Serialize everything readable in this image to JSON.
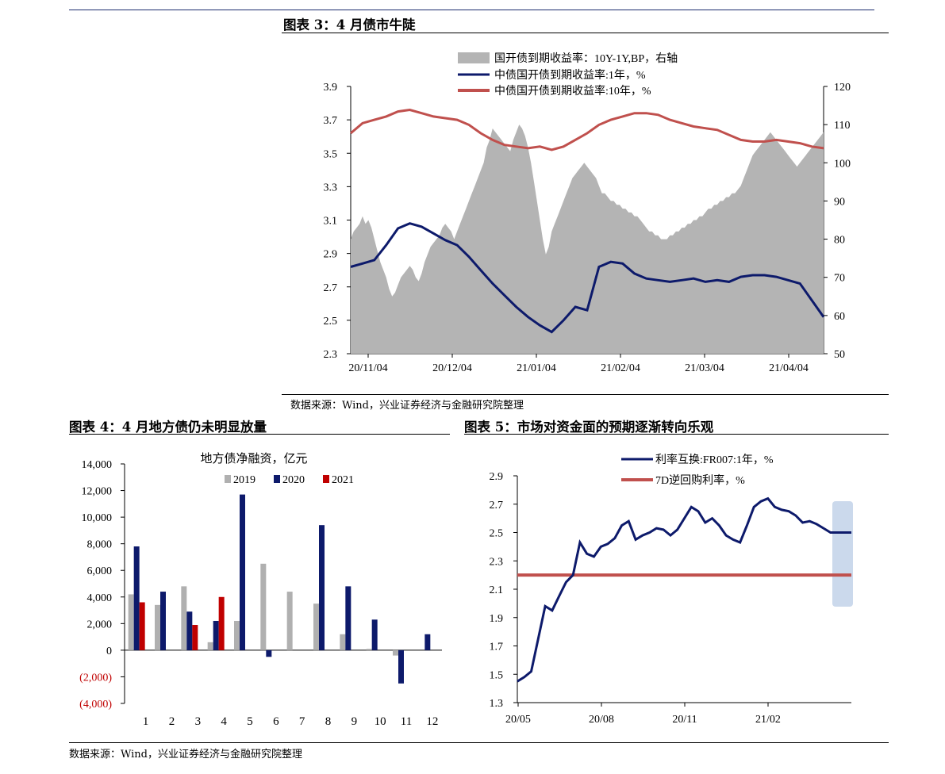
{
  "page": {
    "title_c3": "图表 3：4 月债市牛陡",
    "title_c4": "图表 4：4 月地方债仍未明显放量",
    "title_c5": "图表 5：市场对资金面的预期逐渐转向乐观",
    "source_top": "数据来源：Wind，兴业证券经济与金融研究院整理",
    "source_bottom": "数据来源：Wind，兴业证券经济与金融研究院整理"
  },
  "colors": {
    "navy": "#0d1a6b",
    "red": "#c0504d",
    "gray_area": "#b4b4b4",
    "gray_bar": "#b0b0b0",
    "dark_red": "#c00000",
    "highlight": "#c5d5ea"
  },
  "chart_data": [
    {
      "id": "chart3",
      "type": "line",
      "title": "",
      "x_ticks": [
        "20/11/04",
        "20/12/04",
        "21/01/04",
        "21/02/04",
        "21/03/04",
        "21/04/04"
      ],
      "y_left": {
        "ticks": [
          "2.3",
          "2.5",
          "2.7",
          "2.9",
          "3.1",
          "3.3",
          "3.5",
          "3.7",
          "3.9"
        ],
        "range": [
          2.3,
          3.9
        ]
      },
      "y_right": {
        "ticks": [
          "50",
          "60",
          "70",
          "80",
          "90",
          "100",
          "110",
          "120"
        ],
        "range": [
          50,
          120
        ]
      },
      "series": [
        {
          "name": "国开债到期收益率：10Y-1Y,BP，右轴",
          "type": "area",
          "axis": "right",
          "t": [
            0,
            1,
            2,
            3,
            4,
            5,
            6,
            7,
            8,
            9,
            10,
            11,
            12,
            13,
            14,
            15,
            16,
            17,
            18,
            19,
            20,
            21,
            22,
            23,
            24,
            25,
            26,
            27,
            28,
            29,
            30,
            31,
            32,
            33,
            34,
            35,
            36,
            37,
            38,
            39,
            40,
            41,
            42,
            43,
            44,
            45,
            46,
            47,
            48,
            49,
            50,
            51,
            52,
            53,
            54,
            55,
            56,
            57,
            58,
            59,
            60,
            61,
            62,
            63,
            64,
            65,
            66,
            67,
            68,
            69,
            70,
            71,
            72,
            73,
            74,
            75,
            76,
            77,
            78,
            79,
            80,
            81,
            82,
            83,
            84,
            85,
            86,
            87,
            88,
            89,
            90,
            91,
            92,
            93,
            94,
            95,
            96,
            97,
            98,
            99,
            100,
            101,
            102,
            103,
            104,
            105,
            106,
            107,
            108,
            109,
            110,
            111,
            112,
            113,
            114,
            115,
            116,
            117,
            118,
            119,
            120,
            121,
            122,
            123,
            124,
            125,
            126,
            127,
            128,
            129,
            130,
            131,
            132,
            133,
            134,
            135,
            136,
            137,
            138,
            139,
            140,
            141,
            142,
            143,
            144,
            145,
            146,
            147,
            148,
            149,
            150,
            151,
            152,
            153,
            154,
            155,
            156,
            157,
            158,
            159,
            160
          ],
          "values": [
            80,
            82,
            83,
            84,
            86,
            84,
            85,
            83,
            80,
            77,
            74,
            72,
            70,
            67,
            65,
            66,
            68,
            70,
            71,
            72,
            73,
            72,
            70,
            69,
            71,
            74,
            76,
            78,
            79,
            80,
            81,
            83,
            84,
            83,
            82,
            80,
            82,
            84,
            86,
            88,
            90,
            92,
            94,
            96,
            98,
            100,
            104,
            106,
            109,
            108,
            107,
            106,
            105,
            104,
            103,
            106,
            108,
            110,
            109,
            107,
            104,
            100,
            95,
            90,
            85,
            80,
            76,
            78,
            82,
            84,
            86,
            88,
            90,
            92,
            94,
            96,
            97,
            98,
            99,
            100,
            99,
            98,
            97,
            96,
            94,
            92,
            92,
            91,
            90,
            90,
            89,
            89,
            88,
            88,
            87,
            87,
            86,
            86,
            85,
            84,
            83,
            82,
            82,
            81,
            81,
            80,
            80,
            80,
            81,
            81,
            82,
            82,
            83,
            83,
            84,
            84,
            85,
            85,
            86,
            86,
            87,
            88,
            88,
            89,
            89,
            90,
            90,
            91,
            91,
            92,
            92,
            93,
            94,
            96,
            98,
            100,
            102,
            103,
            104,
            105,
            106,
            107,
            108,
            107,
            106,
            105,
            104,
            103,
            102,
            101,
            100,
            99,
            100,
            101,
            102,
            103,
            104,
            105,
            106,
            107,
            108
          ]
        },
        {
          "name": "中债国开债到期收益率:1年，%",
          "type": "line",
          "axis": "left",
          "t": [
            0,
            4,
            8,
            12,
            16,
            20,
            24,
            28,
            32,
            36,
            40,
            44,
            48,
            52,
            56,
            60,
            64,
            68,
            72,
            76,
            80,
            84,
            88,
            92,
            96,
            100,
            104,
            108,
            112,
            116,
            120,
            124,
            128,
            132,
            136,
            140,
            144,
            148,
            152,
            156,
            160
          ],
          "values": [
            2.82,
            2.84,
            2.86,
            2.95,
            3.05,
            3.08,
            3.06,
            3.02,
            2.98,
            2.95,
            2.88,
            2.8,
            2.72,
            2.65,
            2.58,
            2.52,
            2.47,
            2.43,
            2.5,
            2.58,
            2.56,
            2.82,
            2.85,
            2.84,
            2.78,
            2.75,
            2.74,
            2.73,
            2.74,
            2.75,
            2.73,
            2.74,
            2.73,
            2.76,
            2.77,
            2.77,
            2.76,
            2.74,
            2.72,
            2.62,
            2.52
          ]
        },
        {
          "name": "中债国开债到期收益率:10年，%",
          "type": "line",
          "axis": "left",
          "t": [
            0,
            4,
            8,
            12,
            16,
            20,
            24,
            28,
            32,
            36,
            40,
            44,
            48,
            52,
            56,
            60,
            64,
            68,
            72,
            76,
            80,
            84,
            88,
            92,
            96,
            100,
            104,
            108,
            112,
            116,
            120,
            124,
            128,
            132,
            136,
            140,
            144,
            148,
            152,
            156,
            160
          ],
          "values": [
            3.62,
            3.68,
            3.7,
            3.72,
            3.75,
            3.76,
            3.74,
            3.72,
            3.71,
            3.7,
            3.67,
            3.62,
            3.58,
            3.55,
            3.54,
            3.53,
            3.54,
            3.52,
            3.54,
            3.58,
            3.62,
            3.67,
            3.7,
            3.72,
            3.74,
            3.74,
            3.73,
            3.7,
            3.68,
            3.66,
            3.65,
            3.64,
            3.61,
            3.58,
            3.57,
            3.57,
            3.58,
            3.57,
            3.56,
            3.54,
            3.53
          ]
        }
      ]
    },
    {
      "id": "chart4",
      "type": "bar",
      "title": "地方债净融资，亿元",
      "categories": [
        "1",
        "2",
        "3",
        "4",
        "5",
        "6",
        "7",
        "8",
        "9",
        "10",
        "11",
        "12"
      ],
      "y_ticks": [
        "14,000",
        "12,000",
        "10,000",
        "8,000",
        "6,000",
        "4,000",
        "2,000",
        "0",
        "(2,000)",
        "(4,000)"
      ],
      "ylim": [
        -4000,
        14000
      ],
      "series": [
        {
          "name": "2019",
          "values": [
            4200,
            3400,
            4800,
            600,
            2200,
            6500,
            4400,
            3500,
            1200,
            100,
            -400,
            0
          ]
        },
        {
          "name": "2020",
          "values": [
            7800,
            4400,
            2900,
            2200,
            11700,
            -500,
            0,
            9400,
            4800,
            2300,
            -2500,
            1200
          ]
        },
        {
          "name": "2021",
          "values": [
            3600,
            0,
            1900,
            4000,
            0,
            0,
            0,
            0,
            0,
            0,
            0,
            0
          ]
        }
      ]
    },
    {
      "id": "chart5",
      "type": "line",
      "title": "",
      "x_ticks": [
        "20/05",
        "20/08",
        "20/11",
        "21/02"
      ],
      "y_ticks": [
        "1.3",
        "1.5",
        "1.7",
        "1.9",
        "2.1",
        "2.3",
        "2.5",
        "2.7",
        "2.9"
      ],
      "ylim": [
        1.3,
        2.9
      ],
      "series": [
        {
          "name": "利率互换:FR007:1年，%",
          "t": [
            0,
            3,
            6,
            9,
            12,
            15,
            18,
            21,
            24,
            27,
            30,
            33,
            36,
            39,
            42,
            45,
            48,
            51,
            54,
            57,
            60,
            63,
            66,
            69,
            72,
            75,
            78,
            81,
            84,
            87,
            90,
            93,
            96,
            99,
            102,
            105,
            108,
            111,
            114,
            117,
            120,
            123,
            126,
            129,
            132,
            135,
            138,
            141,
            144
          ],
          "values": [
            1.45,
            1.48,
            1.52,
            1.75,
            1.98,
            1.95,
            2.05,
            2.15,
            2.2,
            2.43,
            2.35,
            2.33,
            2.4,
            2.42,
            2.46,
            2.55,
            2.58,
            2.45,
            2.48,
            2.5,
            2.53,
            2.52,
            2.48,
            2.52,
            2.6,
            2.68,
            2.65,
            2.57,
            2.6,
            2.55,
            2.48,
            2.45,
            2.43,
            2.55,
            2.68,
            2.72,
            2.74,
            2.68,
            2.66,
            2.65,
            2.62,
            2.57,
            2.58,
            2.56,
            2.53,
            2.5,
            2.5,
            2.5,
            2.5
          ]
        },
        {
          "name": "7D逆回购利率，%",
          "t": [
            0,
            144
          ],
          "values": [
            2.2,
            2.2
          ]
        }
      ]
    }
  ]
}
